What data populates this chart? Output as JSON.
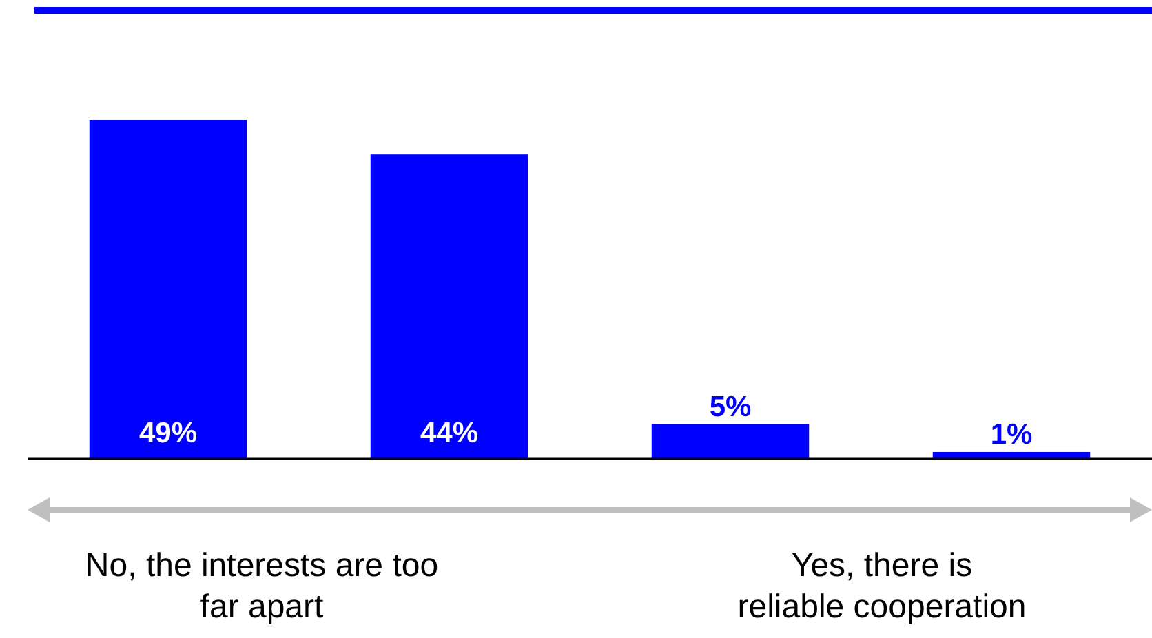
{
  "chart_data": {
    "type": "bar",
    "categories": [
      null,
      null,
      null,
      null
    ],
    "values": [
      49,
      44,
      5,
      1
    ],
    "color": "#0000ff",
    "value_labels": [
      "49%",
      "44%",
      "5%",
      "1%"
    ],
    "annotations": [
      "No, the interests are too far apart",
      "Yes, there is reliable cooperation"
    ]
  }
}
